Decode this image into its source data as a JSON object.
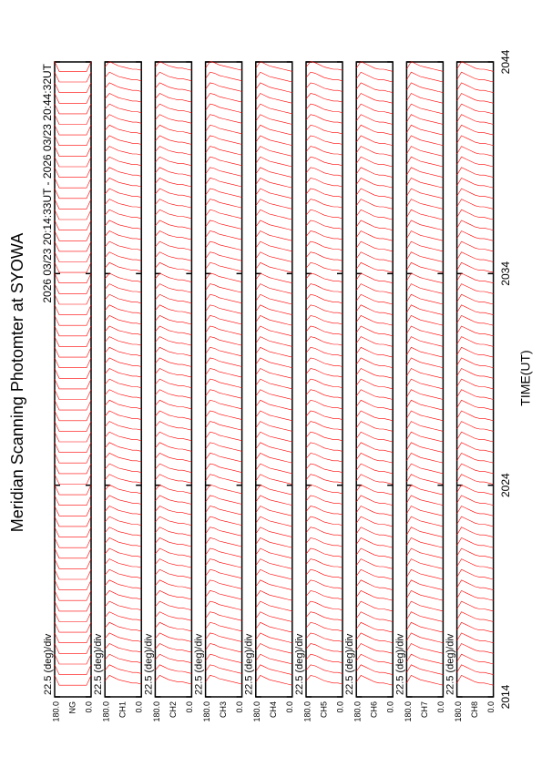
{
  "chart_data": {
    "type": "line",
    "title": "Meridian Scanning Photomter at SYOWA",
    "subtitle": "2026 03/23 20:14:33UT - 2026 03/23 20:44:32UT",
    "xlabel": "TIME(UT)",
    "xlim": [
      2014,
      2044
    ],
    "xticks": [
      2014,
      2024,
      2034,
      2044
    ],
    "x": [
      2014.5,
      2015,
      2015.5,
      2016,
      2016.5,
      2017,
      2017.5,
      2018,
      2018.5,
      2019,
      2019.5,
      2020,
      2020.5,
      2021,
      2021.5,
      2022,
      2022.5,
      2023,
      2023.5,
      2024,
      2024.5,
      2025,
      2025.5,
      2026,
      2026.5,
      2027,
      2027.5,
      2028,
      2028.5,
      2029,
      2029.5,
      2030,
      2030.5,
      2031,
      2031.5,
      2032,
      2032.5,
      2033,
      2033.5,
      2034,
      2034.5,
      2035,
      2035.5,
      2036,
      2036.5,
      2037,
      2037.5,
      2038,
      2038.5,
      2039,
      2039.5,
      2040,
      2040.5,
      2041,
      2041.5,
      2042,
      2042.5,
      2043,
      2043.5
    ],
    "color": "#ff0000",
    "angles": [
      0,
      22.5,
      45,
      67.5,
      90,
      112.5,
      135,
      157.5,
      180
    ],
    "ylim": [
      0,
      180
    ],
    "yticks": [
      {
        "value": 180,
        "label": "180.0"
      },
      {
        "value": 0,
        "label": "0.0"
      }
    ],
    "panels": [
      {
        "name": "NG",
        "scale_label": "22.5 (deg)/div",
        "profile": [
          1,
          0.1,
          0.1,
          0.1,
          0.1,
          0.1,
          0.1,
          0.1,
          1
        ]
      },
      {
        "name": "CH1",
        "scale_label": "22.5 (deg)/div",
        "profile": [
          0.2,
          0.3,
          0.3,
          0.4,
          0.5,
          0.6,
          0.8,
          1,
          0.5
        ]
      },
      {
        "name": "CH2",
        "scale_label": "22.5 (deg)/div",
        "profile": [
          0.2,
          0.3,
          0.4,
          0.4,
          0.5,
          0.6,
          0.8,
          1,
          0.5
        ]
      },
      {
        "name": "CH3",
        "scale_label": "22.5 (deg)/div",
        "profile": [
          0.2,
          0.3,
          0.4,
          0.5,
          0.6,
          0.7,
          0.9,
          1,
          0.4
        ]
      },
      {
        "name": "CH4",
        "scale_label": "22.5 (deg)/div",
        "profile": [
          0.1,
          0.2,
          0.3,
          0.4,
          0.5,
          0.6,
          0.8,
          1,
          0.4
        ]
      },
      {
        "name": "CH5",
        "scale_label": "22.5 (deg)/div",
        "profile": [
          0.2,
          0.3,
          0.3,
          0.4,
          0.5,
          0.7,
          0.9,
          1,
          0.5
        ]
      },
      {
        "name": "CH6",
        "scale_label": "22.5 (deg)/div",
        "profile": [
          0.1,
          0.2,
          0.3,
          0.3,
          0.4,
          0.6,
          0.8,
          1,
          0.4
        ]
      },
      {
        "name": "CH7",
        "scale_label": "22.5 (deg)/div",
        "profile": [
          0.1,
          0.2,
          0.3,
          0.4,
          0.5,
          0.6,
          0.8,
          1,
          0.3
        ]
      },
      {
        "name": "CH8",
        "scale_label": "22.5 (deg)/div",
        "profile": [
          0.1,
          0.2,
          0.3,
          0.3,
          0.4,
          0.6,
          0.8,
          1,
          0.3
        ]
      }
    ]
  }
}
